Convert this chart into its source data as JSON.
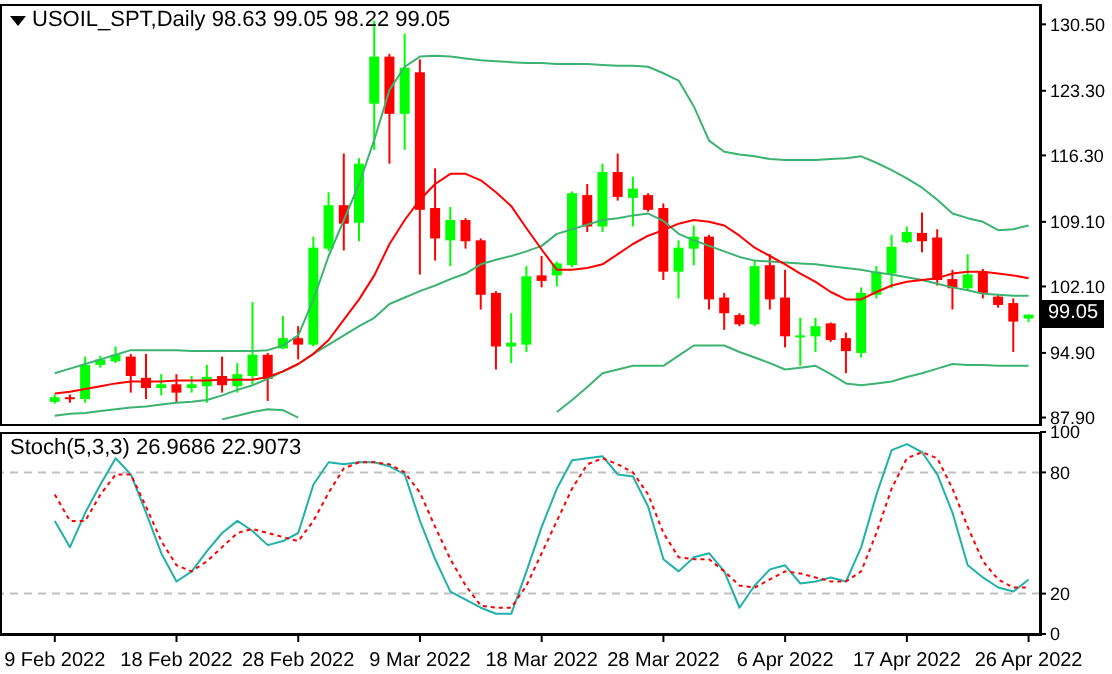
{
  "chart_data": [
    {
      "type": "candlestick",
      "title": "USOIL_SPT,Daily 98.63 99.05 98.22 99.05",
      "ohlc": [
        [
          89.6,
          90.4,
          89.4,
          90.1
        ],
        [
          90.1,
          90.4,
          89.5,
          89.9
        ],
        [
          89.9,
          94.5,
          89.5,
          93.6
        ],
        [
          93.6,
          94.6,
          93.3,
          94.2
        ],
        [
          94.0,
          95.6,
          93.8,
          94.7
        ],
        [
          94.5,
          94.8,
          90.6,
          92.4
        ],
        [
          92.2,
          94.8,
          89.9,
          91.1
        ],
        [
          91.1,
          92.6,
          90.3,
          91.5
        ],
        [
          91.5,
          92.6,
          89.5,
          90.6
        ],
        [
          91.1,
          92.4,
          90.6,
          91.5
        ],
        [
          91.3,
          93.6,
          89.5,
          92.3
        ],
        [
          92.4,
          94.5,
          90.6,
          91.4
        ],
        [
          91.3,
          93.8,
          90.6,
          92.6
        ],
        [
          92.4,
          100.4,
          91.5,
          94.7
        ],
        [
          94.7,
          94.9,
          89.7,
          92.1
        ],
        [
          95.4,
          98.9,
          95.3,
          96.5
        ],
        [
          96.5,
          97.8,
          94.2,
          95.8
        ],
        [
          95.8,
          107.5,
          95.6,
          106.3
        ],
        [
          106.2,
          112.3,
          105.9,
          110.9
        ],
        [
          110.9,
          116.5,
          106.0,
          108.9
        ],
        [
          109.0,
          116.0,
          107.0,
          115.4
        ],
        [
          121.9,
          130.9,
          116.9,
          127.0
        ],
        [
          127.0,
          127.3,
          115.4,
          120.8
        ],
        [
          120.8,
          129.5,
          116.9,
          125.8
        ],
        [
          125.3,
          126.7,
          103.4,
          110.4
        ],
        [
          110.6,
          114.9,
          104.9,
          107.3
        ],
        [
          107.1,
          110.7,
          104.3,
          109.3
        ],
        [
          109.3,
          109.5,
          106.2,
          107.0
        ],
        [
          107.1,
          107.3,
          99.6,
          101.2
        ],
        [
          101.4,
          101.6,
          93.1,
          95.6
        ],
        [
          95.6,
          99.2,
          93.8,
          96.0
        ],
        [
          95.8,
          104.3,
          95.0,
          103.2
        ],
        [
          103.3,
          105.4,
          102.0,
          102.7
        ],
        [
          103.3,
          104.8,
          102.1,
          104.6
        ],
        [
          104.4,
          112.4,
          104.2,
          112.2
        ],
        [
          112.0,
          113.2,
          108.0,
          108.6
        ],
        [
          108.6,
          115.4,
          108.0,
          114.5
        ],
        [
          114.5,
          116.5,
          111.4,
          111.8
        ],
        [
          111.7,
          114.0,
          108.6,
          112.7
        ],
        [
          112.0,
          112.2,
          110.2,
          110.4
        ],
        [
          110.6,
          111.1,
          102.8,
          103.7
        ],
        [
          103.7,
          107.1,
          100.8,
          106.3
        ],
        [
          106.2,
          108.7,
          104.4,
          107.5
        ],
        [
          107.5,
          107.7,
          99.6,
          100.7
        ],
        [
          100.9,
          101.4,
          97.4,
          99.2
        ],
        [
          99.0,
          99.2,
          97.8,
          98.0
        ],
        [
          98.0,
          104.9,
          97.8,
          104.3
        ],
        [
          104.4,
          105.6,
          99.6,
          100.7
        ],
        [
          100.9,
          103.9,
          95.5,
          96.7
        ],
        [
          96.6,
          98.7,
          93.5,
          96.8
        ],
        [
          96.7,
          98.7,
          95.0,
          97.8
        ],
        [
          98.1,
          98.2,
          96.1,
          96.3
        ],
        [
          96.5,
          97.1,
          92.7,
          95.1
        ],
        [
          94.9,
          102.0,
          94.4,
          101.4
        ],
        [
          101.2,
          104.3,
          100.8,
          103.7
        ],
        [
          103.5,
          107.7,
          101.9,
          106.4
        ],
        [
          106.9,
          108.6,
          106.8,
          108.0
        ],
        [
          107.9,
          110.1,
          105.8,
          107.0
        ],
        [
          107.4,
          108.3,
          102.2,
          102.8
        ],
        [
          102.9,
          103.9,
          99.6,
          101.9
        ],
        [
          101.9,
          105.6,
          101.7,
          103.4
        ],
        [
          103.7,
          104.0,
          100.8,
          101.4
        ],
        [
          101.0,
          101.2,
          99.8,
          100.1
        ],
        [
          100.3,
          100.8,
          95.0,
          98.3
        ],
        [
          98.63,
          99.05,
          98.22,
          99.05
        ]
      ],
      "colors": [
        "#00ff00",
        "#ff0000",
        "#00ff00",
        "#00ff00",
        "#00ff00",
        "#ff0000",
        "#ff0000",
        "#00ff00",
        "#ff0000",
        "#00ff00",
        "#00ff00",
        "#ff0000",
        "#00ff00",
        "#00ff00",
        "#ff0000",
        "#00ff00",
        "#ff0000",
        "#00ff00",
        "#00ff00",
        "#ff0000",
        "#00ff00",
        "#00ff00",
        "#ff0000",
        "#00ff00",
        "#ff0000",
        "#ff0000",
        "#00ff00",
        "#ff0000",
        "#ff0000",
        "#ff0000",
        "#00ff00",
        "#00ff00",
        "#ff0000",
        "#00ff00",
        "#00ff00",
        "#ff0000",
        "#00ff00",
        "#ff0000",
        "#00ff00",
        "#ff0000",
        "#ff0000",
        "#00ff00",
        "#00ff00",
        "#ff0000",
        "#ff0000",
        "#ff0000",
        "#00ff00",
        "#ff0000",
        "#ff0000",
        "#00ff00",
        "#00ff00",
        "#ff0000",
        "#ff0000",
        "#00ff00",
        "#00ff00",
        "#00ff00",
        "#00ff00",
        "#ff0000",
        "#ff0000",
        "#ff0000",
        "#00ff00",
        "#ff0000",
        "#ff0000",
        "#ff0000",
        "#00ff00"
      ],
      "series": [
        {
          "type": "line",
          "color": "#3cb371",
          "values": [
            92.7,
            93.2,
            93.7,
            94.2,
            94.7,
            95.2,
            95.2,
            95.2,
            95.2,
            95.1,
            95.1,
            95.1,
            95.1,
            95.1,
            95.2,
            95.7,
            96.8,
            100.7,
            105.4,
            109.3,
            113.2,
            118.0,
            123.4,
            125.9,
            127.0,
            127.1,
            127.0,
            126.8,
            126.6,
            126.5,
            126.4,
            126.3,
            126.3,
            126.2,
            126.2,
            126.2,
            126.1,
            126.0,
            126.0,
            125.9,
            125.2,
            124.4,
            121.6,
            117.9,
            116.7,
            116.4,
            116.2,
            115.9,
            115.8,
            115.8,
            115.8,
            115.9,
            116.0,
            116.2,
            115.5,
            114.7,
            113.8,
            112.8,
            111.5,
            110.0,
            109.5,
            109.1,
            108.2,
            108.3,
            108.7
          ]
        },
        {
          "type": "line",
          "color": "#3cb371",
          "values": [
            88.1,
            88.3,
            88.4,
            88.6,
            88.8,
            89.0,
            89.1,
            89.3,
            89.5,
            89.6,
            89.8,
            90.3,
            90.9,
            91.4,
            92.1,
            92.9,
            93.7,
            94.8,
            95.8,
            96.8,
            97.8,
            98.7,
            100.2,
            100.9,
            101.6,
            102.2,
            102.9,
            103.5,
            104.5,
            105.0,
            105.4,
            105.9,
            106.5,
            107.8,
            108.3,
            108.8,
            109.3,
            109.5,
            109.8,
            110.0,
            109.2,
            107.8,
            107.1,
            106.5,
            105.9,
            105.3,
            104.9,
            104.8,
            104.7,
            104.6,
            104.5,
            104.3,
            104.1,
            103.9,
            103.6,
            103.4,
            103.1,
            102.8,
            102.4,
            102.0,
            101.7,
            101.3,
            101.2,
            101.1,
            101.1
          ]
        },
        {
          "type": "line",
          "color": "#3cb371",
          "values": [
            null,
            null,
            null,
            null,
            null,
            null,
            null,
            null,
            null,
            null,
            null,
            87.7,
            88.1,
            88.5,
            88.8,
            88.7,
            87.9,
            null,
            null,
            null,
            null,
            null,
            null,
            null,
            null,
            null,
            null,
            null,
            null,
            null,
            null,
            null,
            null,
            88.5,
            89.8,
            91.2,
            92.7,
            93.1,
            93.5,
            93.5,
            93.5,
            94.6,
            95.7,
            95.7,
            95.7,
            95.0,
            94.4,
            93.8,
            93.1,
            93.3,
            93.5,
            92.6,
            91.6,
            91.4,
            91.6,
            91.8,
            92.3,
            92.7,
            93.2,
            93.7,
            93.6,
            93.6,
            93.5,
            93.5,
            93.5
          ]
        },
        {
          "type": "line",
          "color": "#ff0000",
          "values": [
            90.5,
            90.7,
            91.0,
            91.3,
            91.6,
            91.8,
            91.8,
            91.8,
            91.9,
            91.9,
            91.9,
            92.0,
            92.0,
            92.0,
            92.3,
            92.9,
            93.7,
            94.8,
            96.3,
            98.5,
            100.7,
            103.3,
            106.7,
            109.3,
            111.5,
            113.2,
            114.3,
            114.3,
            113.6,
            112.3,
            110.8,
            108.4,
            106.1,
            103.9,
            103.9,
            104.1,
            104.5,
            105.6,
            106.7,
            107.6,
            108.2,
            108.9,
            109.3,
            109.1,
            108.7,
            107.6,
            106.3,
            105.4,
            104.5,
            103.5,
            102.6,
            101.5,
            100.7,
            100.7,
            101.5,
            102.2,
            102.6,
            102.8,
            103.0,
            103.5,
            103.7,
            103.7,
            103.5,
            103.3,
            103.0
          ]
        }
      ],
      "ylim": [
        87.2,
        132.7
      ],
      "yticks": [
        {
          "value": 130.5,
          "label": "130.50"
        },
        {
          "value": 123.3,
          "label": "123.30"
        },
        {
          "value": 116.3,
          "label": "116.30"
        },
        {
          "value": 109.1,
          "label": "109.10"
        },
        {
          "value": 102.1,
          "label": "102.10"
        },
        {
          "value": 94.9,
          "label": "94.90"
        },
        {
          "value": 87.9,
          "label": "87.90"
        }
      ],
      "annotations": [
        {
          "text": "99.05",
          "y": 99.05
        }
      ],
      "marker": "none",
      "tick_labels": "y"
    },
    {
      "type": "line",
      "title": "Stoch(5,3,3) 26.9686 22.9073",
      "categories": [
        "9 Feb 2022",
        null,
        null,
        null,
        null,
        null,
        null,
        null,
        "18 Feb 2022",
        null,
        null,
        null,
        null,
        null,
        null,
        null,
        "28 Feb 2022",
        null,
        null,
        null,
        null,
        null,
        null,
        null,
        "9 Mar 2022",
        null,
        null,
        null,
        null,
        null,
        null,
        null,
        "18 Mar 2022",
        null,
        null,
        null,
        null,
        null,
        null,
        null,
        "28 Mar 2022",
        null,
        null,
        null,
        null,
        null,
        null,
        null,
        "6 Apr 2022",
        null,
        null,
        null,
        null,
        null,
        null,
        null,
        "17 Apr 2022",
        null,
        null,
        null,
        null,
        null,
        null,
        null,
        "26 Apr 2022"
      ],
      "series": [
        {
          "color": "#20b2aa",
          "line_style": "solid",
          "values": [
            56,
            43,
            60,
            74,
            87,
            79,
            60,
            40,
            26,
            31,
            41,
            50,
            56,
            51,
            44,
            46,
            50,
            74,
            85,
            84,
            85,
            85,
            83,
            79,
            56,
            37,
            21,
            17,
            13,
            10,
            10,
            31,
            53,
            72,
            86,
            87,
            88,
            79,
            78,
            63,
            37,
            31,
            38,
            40,
            31,
            13,
            24,
            32,
            34,
            25,
            26,
            28,
            26,
            43,
            69,
            91,
            94,
            90,
            79,
            60,
            34,
            28,
            23,
            21,
            27
          ]
        },
        {
          "color": "#ff0000",
          "line_style": "dotted",
          "values": [
            69,
            56,
            56,
            69,
            79,
            79,
            63,
            46,
            34,
            31,
            36,
            43,
            50,
            52,
            50,
            48,
            46,
            56,
            70,
            82,
            85,
            85,
            84,
            80,
            70,
            53,
            37,
            24,
            14,
            13,
            13,
            24,
            40,
            56,
            72,
            84,
            87,
            84,
            80,
            69,
            50,
            38,
            37,
            37,
            31,
            24,
            23,
            27,
            31,
            30,
            28,
            26,
            26,
            31,
            50,
            72,
            87,
            90,
            87,
            72,
            53,
            36,
            27,
            23,
            23
          ]
        }
      ],
      "ylim": [
        0,
        100
      ],
      "yticks": [
        0,
        20,
        80,
        100
      ],
      "ref_lines": [
        {
          "axis": "y",
          "value": 20,
          "color": "#c0c0c0",
          "line_style": "dashed"
        },
        {
          "axis": "y",
          "value": 80,
          "color": "#c0c0c0",
          "line_style": "dashed"
        }
      ],
      "marker": "none"
    }
  ]
}
